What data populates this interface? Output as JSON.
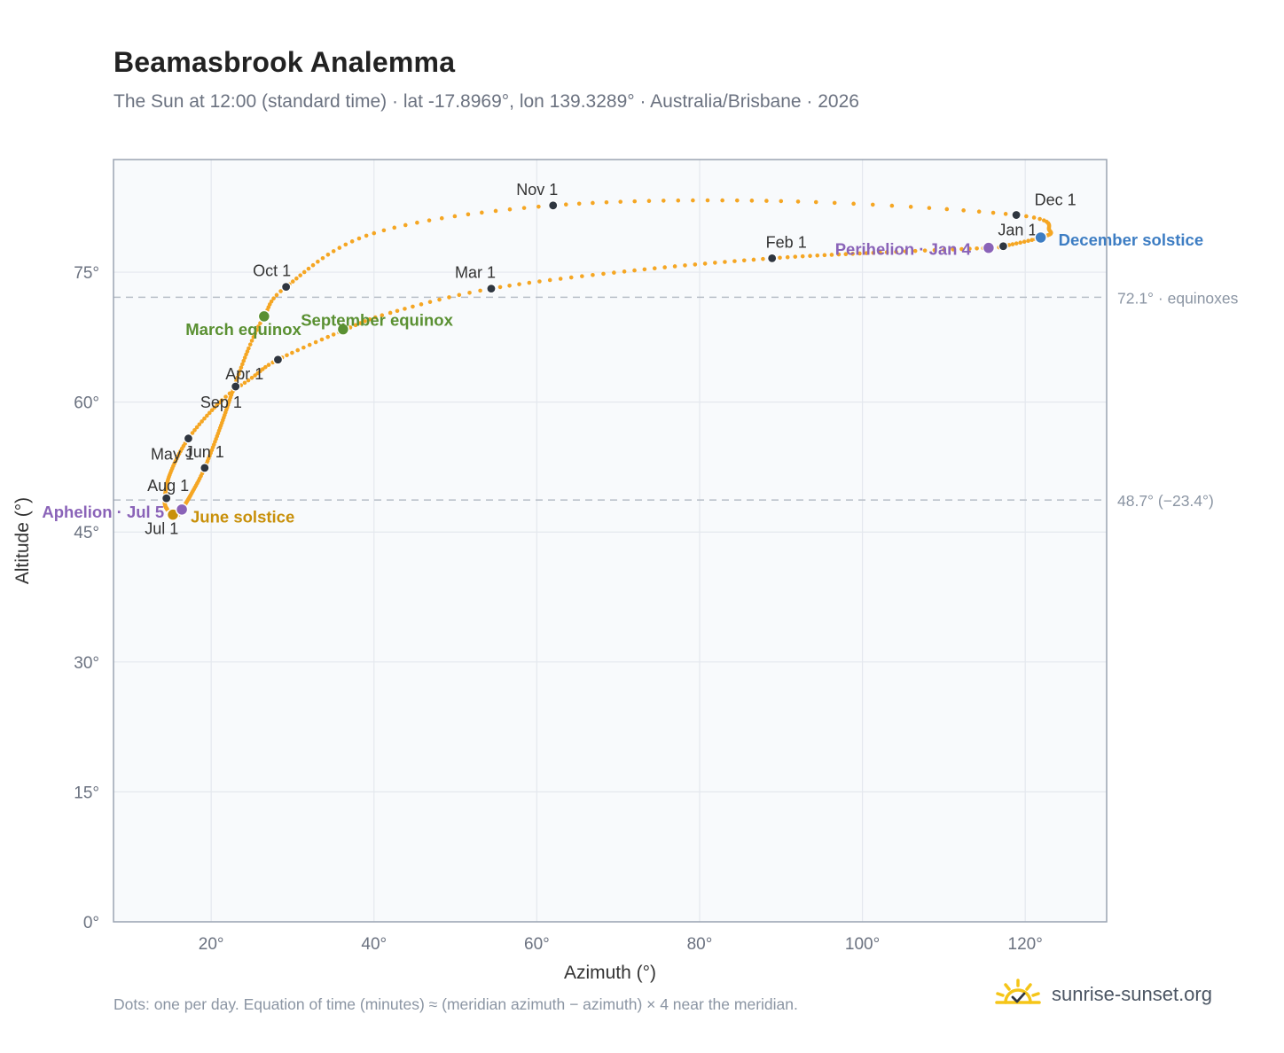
{
  "title": "Beamasbrook Analemma",
  "subtitle": "The Sun at 12:00 (standard time) · lat -17.8969°, lon 139.3289° · Australia/Brisbane · 2026",
  "footnote": "Dots: one per day. Equation of time (minutes) ≈ (meridian azimuth − azimuth) × 4 near the meridian.",
  "brand": {
    "name": "sunrise-sunset.org",
    "logo_icon": "sun-check-logo",
    "colors": {
      "rays": "#f5c518",
      "check": "#2f3640"
    }
  },
  "chart_data": {
    "type": "scatter",
    "xlabel": "Azimuth (°)",
    "ylabel": "Altitude (°)",
    "xlim": [
      8,
      130
    ],
    "ylim": [
      0,
      88
    ],
    "xticks": [
      20,
      40,
      60,
      80,
      100,
      120
    ],
    "yticks": [
      0,
      15,
      30,
      45,
      60,
      75
    ],
    "x_tick_labels": [
      "20°",
      "40°",
      "60°",
      "80°",
      "100°",
      "120°"
    ],
    "y_tick_labels": [
      "0°",
      "15°",
      "30°",
      "45°",
      "60°",
      "75°"
    ],
    "grid": true,
    "colors": {
      "path": "#f5a623",
      "month": "#2f3640",
      "equinox": "#5a9032",
      "june_solstice": "#c8900a",
      "december_solstice": "#3d7dc3",
      "apsis": "#8a63b8",
      "reference": "#b8bfc8",
      "plot_bg": "#f8fafc",
      "frame": "#9aa4b2"
    },
    "reference_lines": [
      {
        "y": 72.1,
        "label": "72.1° · equinoxes"
      },
      {
        "y": 48.7,
        "label": "48.7° (−23.4°)"
      }
    ],
    "path_anchors": [
      {
        "doy": 0,
        "az": 117.3,
        "alt": 78.0
      },
      {
        "doy": 3,
        "az": 115.5,
        "alt": 77.8
      },
      {
        "doy": 15,
        "az": 103.0,
        "alt": 77.3
      },
      {
        "doy": 31,
        "az": 88.9,
        "alt": 76.6
      },
      {
        "doy": 45,
        "az": 72.0,
        "alt": 75.2
      },
      {
        "doy": 59,
        "az": 54.4,
        "alt": 73.1
      },
      {
        "doy": 70,
        "az": 42.0,
        "alt": 70.3
      },
      {
        "doy": 78,
        "az": 36.3,
        "alt": 68.3
      },
      {
        "doy": 90,
        "az": 28.2,
        "alt": 64.9
      },
      {
        "doy": 98,
        "az": 25.0,
        "alt": 62.8
      },
      {
        "doy": 106,
        "az": 21.3,
        "alt": 60.2
      },
      {
        "doy": 120,
        "az": 17.2,
        "alt": 55.8
      },
      {
        "doy": 135,
        "az": 14.9,
        "alt": 51.6
      },
      {
        "doy": 151,
        "az": 14.3,
        "alt": 48.7
      },
      {
        "doy": 165,
        "az": 14.6,
        "alt": 47.6
      },
      {
        "doy": 171,
        "az": 15.3,
        "alt": 47.2
      },
      {
        "doy": 181,
        "az": 16.0,
        "alt": 47.0
      },
      {
        "doy": 185,
        "az": 16.4,
        "alt": 47.6
      },
      {
        "doy": 200,
        "az": 17.5,
        "alt": 49.3
      },
      {
        "doy": 212,
        "az": 19.2,
        "alt": 52.4
      },
      {
        "doy": 228,
        "az": 21.2,
        "alt": 57.3
      },
      {
        "doy": 243,
        "az": 22.8,
        "alt": 61.7
      },
      {
        "doy": 255,
        "az": 24.6,
        "alt": 66.2
      },
      {
        "doy": 264,
        "az": 26.5,
        "alt": 69.9
      },
      {
        "doy": 273,
        "az": 29.2,
        "alt": 73.3
      },
      {
        "doy": 290,
        "az": 40.0,
        "alt": 79.5
      },
      {
        "doy": 304,
        "az": 62.0,
        "alt": 82.7
      },
      {
        "doy": 320,
        "az": 90.0,
        "alt": 83.2
      },
      {
        "doy": 334,
        "az": 118.9,
        "alt": 81.6
      },
      {
        "doy": 346,
        "az": 123.0,
        "alt": 79.8
      },
      {
        "doy": 354,
        "az": 121.9,
        "alt": 79.0
      },
      {
        "doy": 365,
        "az": 117.3,
        "alt": 78.0
      }
    ],
    "month_markers": [
      {
        "label": "Jan 1",
        "az": 117.3,
        "alt": 78.0,
        "dx": 16,
        "dy": -12
      },
      {
        "label": "Feb 1",
        "az": 88.9,
        "alt": 76.6,
        "dx": 16,
        "dy": -12
      },
      {
        "label": "Mar 1",
        "az": 54.4,
        "alt": 73.1,
        "dx": -18,
        "dy": -12
      },
      {
        "label": "Apr 1",
        "az": 23.0,
        "alt": 61.8,
        "dx": 10,
        "dy": -8
      },
      {
        "label": "May 1",
        "az": 17.2,
        "alt": 55.8,
        "dx": -18,
        "dy": 24
      },
      {
        "label": "Jun 1",
        "az": 19.2,
        "alt": 52.4
      },
      {
        "label": "Jul 1",
        "az": 15.0,
        "alt": 47.0,
        "dx": -10,
        "dy": 22
      },
      {
        "label": "Aug 1",
        "az": 14.5,
        "alt": 48.9,
        "dx": 2,
        "dy": -8
      },
      {
        "label": "Sep 1",
        "az": 28.2,
        "alt": 64.9,
        "dx": -64,
        "dy": 54
      },
      {
        "label": "Oct 1",
        "az": 29.2,
        "alt": 73.3,
        "dx": -16,
        "dy": -12
      },
      {
        "label": "Nov 1",
        "az": 62.0,
        "alt": 82.7,
        "dx": -18,
        "dy": -12
      },
      {
        "label": "Dec 1",
        "az": 118.9,
        "alt": 81.6,
        "dx": 44,
        "dy": -11
      }
    ],
    "events": [
      {
        "label": "March equinox",
        "az": 26.5,
        "alt": 69.9,
        "kind": "equinox",
        "anchor": "end",
        "dx": 42,
        "dy": 21
      },
      {
        "label": "September equinox",
        "az": 36.2,
        "alt": 68.4,
        "kind": "equinox",
        "anchor": "end",
        "dx": 124,
        "dy": -4
      },
      {
        "label": "June solstice",
        "az": 15.3,
        "alt": 47.0,
        "kind": "june_solstice",
        "anchor": "start",
        "dx": 20,
        "dy": 9
      },
      {
        "label": "December solstice",
        "az": 121.9,
        "alt": 79.0,
        "kind": "december_solstice",
        "anchor": "start",
        "dx": 20,
        "dy": 9
      },
      {
        "label": "Perihelion · Jan 4",
        "az": 115.5,
        "alt": 77.8,
        "kind": "apsis",
        "anchor": "end",
        "dx": -20,
        "dy": 8
      },
      {
        "label": "Aphelion · Jul 5",
        "az": 16.4,
        "alt": 47.6,
        "kind": "apsis",
        "anchor": "end",
        "dx": -20,
        "dy": 9
      }
    ]
  }
}
